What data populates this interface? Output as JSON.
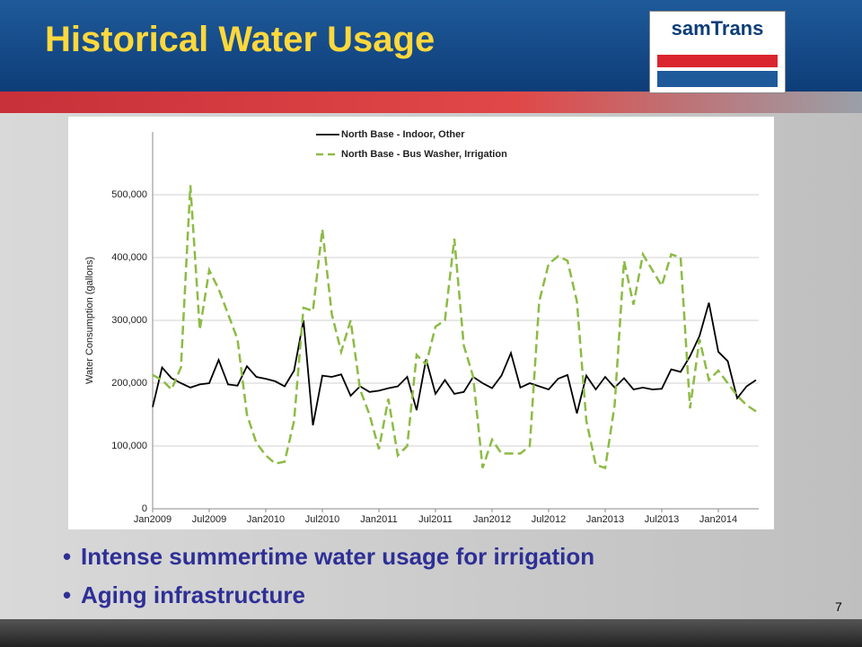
{
  "slide_title": "Historical Water Usage",
  "logo": "samTrans",
  "bullets": [
    "Intense summertime water usage for irrigation",
    "Aging infrastructure"
  ],
  "page_number": "7",
  "chart_data": {
    "type": "line",
    "y_label": "Water Consumption  (gallons)",
    "categories": [
      "Jan2009",
      null,
      null,
      null,
      null,
      null,
      "Jul2009",
      null,
      null,
      null,
      null,
      null,
      "Jan2010",
      null,
      null,
      null,
      null,
      null,
      "Jul2010",
      null,
      null,
      null,
      null,
      null,
      "Jan2011",
      null,
      null,
      null,
      null,
      null,
      "Jul2011",
      null,
      null,
      null,
      null,
      null,
      "Jan2012",
      null,
      null,
      null,
      null,
      null,
      "Jul2012",
      null,
      null,
      null,
      null,
      null,
      "Jan2013",
      null,
      null,
      null,
      null,
      null,
      "Jul2013",
      null,
      null,
      null,
      null,
      null,
      "Jan2014",
      null,
      null,
      null,
      null
    ],
    "series": [
      {
        "name": "North Base - Indoor, Other",
        "color": "#000000",
        "dash": false,
        "values": [
          162000,
          225000,
          208000,
          200000,
          193000,
          198000,
          200000,
          237000,
          198000,
          196000,
          227000,
          210000,
          207000,
          203000,
          195000,
          220000,
          300000,
          133000,
          212000,
          210000,
          214000,
          180000,
          195000,
          186000,
          188000,
          192000,
          195000,
          210000,
          157000,
          238000,
          183000,
          205000,
          183000,
          186000,
          210000,
          200000,
          192000,
          212000,
          248000,
          193000,
          200000,
          195000,
          190000,
          207000,
          213000,
          152000,
          212000,
          190000,
          210000,
          193000,
          208000,
          190000,
          193000,
          190000,
          191000,
          222000,
          218000,
          243000,
          275000,
          328000,
          250000,
          235000,
          176000,
          195000,
          205000
        ]
      },
      {
        "name": "North Base - Bus Washer, Irrigation",
        "color": "#8dbb45",
        "dash": true,
        "values": [
          213000,
          205000,
          190000,
          225000,
          515000,
          285000,
          380000,
          350000,
          310000,
          270000,
          150000,
          105000,
          85000,
          72000,
          75000,
          140000,
          320000,
          315000,
          445000,
          310000,
          250000,
          300000,
          190000,
          150000,
          95000,
          175000,
          85000,
          100000,
          245000,
          230000,
          290000,
          300000,
          430000,
          260000,
          210000,
          65000,
          110000,
          88000,
          88000,
          88000,
          100000,
          330000,
          390000,
          402000,
          395000,
          330000,
          140000,
          70000,
          65000,
          165000,
          395000,
          325000,
          405000,
          380000,
          355000,
          405000,
          400000,
          160000,
          270000,
          205000,
          220000,
          200000,
          180000,
          165000,
          155000
        ]
      }
    ],
    "ylim": [
      0,
      600000
    ],
    "yticks": [
      0,
      {
        "value": 100000,
        "label": "100,000"
      },
      {
        "value": 200000,
        "label": "200,000"
      },
      {
        "value": 300000,
        "label": "300,000"
      },
      {
        "value": 400000,
        "label": "400,000"
      },
      {
        "value": 500000,
        "label": "500,000"
      }
    ],
    "grid": true
  }
}
